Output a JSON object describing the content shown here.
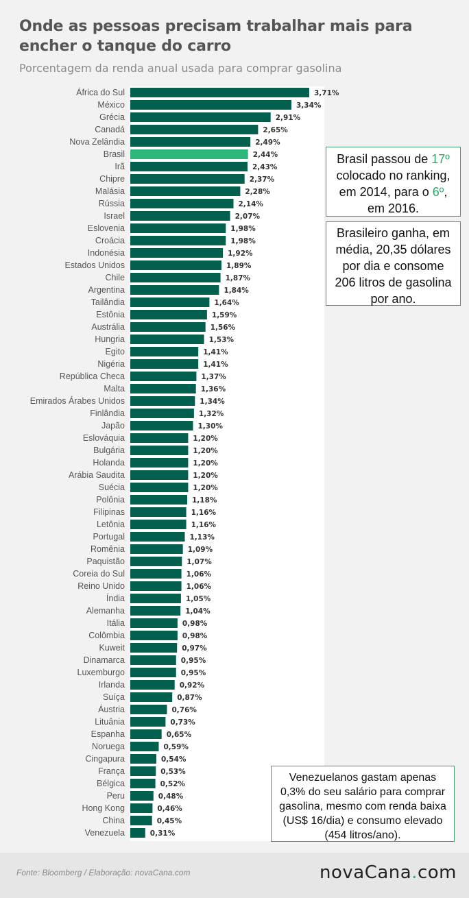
{
  "title": "Onde as pessoas precisam trabalhar mais para encher o tanque do carro",
  "subtitle": "Porcentagem da renda anual usada para comprar gasolina",
  "colors": {
    "bar": "#03604f",
    "highlight": "#2eb77a",
    "panel": "#ffffff",
    "accent": "#2fa866"
  },
  "chart_data": {
    "type": "bar",
    "orientation": "horizontal",
    "categories": [
      "África do Sul",
      "México",
      "Grécia",
      "Canadá",
      "Nova Zelândia",
      "Brasil",
      "Irã",
      "Chipre",
      "Malásia",
      "Rússia",
      "Israel",
      "Eslovenia",
      "Croácia",
      "Indonésia",
      "Estados Unidos",
      "Chile",
      "Argentina",
      "Tailândia",
      "Estônia",
      "Austrália",
      "Hungria",
      "Egito",
      "Nigéria",
      "República Checa",
      "Malta",
      "Emirados Árabes Unidos",
      "Finlândia",
      "Japão",
      "Eslováquia",
      "Bulgária",
      "Holanda",
      "Arábia Saudita",
      "Suécia",
      "Polônia",
      "Filipinas",
      "Letônia",
      "Portugal",
      "Romênia",
      "Paquistão",
      "Coreia do Sul",
      "Reino Unido",
      "Índia",
      "Alemanha",
      "Itália",
      "Colômbia",
      "Kuweit",
      "Dinamarca",
      "Luxemburgo",
      "Irlanda",
      "Suíça",
      "Áustria",
      "Lituânia",
      "Espanha",
      "Noruega",
      "Cingapura",
      "França",
      "Bélgica",
      "Peru",
      "Hong Kong",
      "China",
      "Venezuela"
    ],
    "values": [
      3.71,
      3.34,
      2.91,
      2.65,
      2.49,
      2.44,
      2.43,
      2.37,
      2.28,
      2.14,
      2.07,
      1.98,
      1.98,
      1.92,
      1.89,
      1.87,
      1.84,
      1.64,
      1.59,
      1.56,
      1.53,
      1.41,
      1.41,
      1.37,
      1.36,
      1.34,
      1.32,
      1.3,
      1.2,
      1.2,
      1.2,
      1.2,
      1.2,
      1.18,
      1.16,
      1.16,
      1.13,
      1.09,
      1.07,
      1.06,
      1.06,
      1.05,
      1.04,
      0.98,
      0.98,
      0.97,
      0.95,
      0.95,
      0.92,
      0.87,
      0.76,
      0.73,
      0.65,
      0.59,
      0.54,
      0.53,
      0.52,
      0.48,
      0.46,
      0.45,
      0.31
    ],
    "value_labels": [
      "3,71%",
      "3,34%",
      "2,91%",
      "2,65%",
      "2,49%",
      "2,44%",
      "2,43%",
      "2,37%",
      "2,28%",
      "2,14%",
      "2,07%",
      "1,98%",
      "1,98%",
      "1,92%",
      "1,89%",
      "1,87%",
      "1,84%",
      "1,64%",
      "1,59%",
      "1,56%",
      "1,53%",
      "1,41%",
      "1,41%",
      "1,37%",
      "1,36%",
      "1,34%",
      "1,32%",
      "1,30%",
      "1,20%",
      "1,20%",
      "1,20%",
      "1,20%",
      "1,20%",
      "1,18%",
      "1,16%",
      "1,16%",
      "1,13%",
      "1,09%",
      "1,07%",
      "1,06%",
      "1,06%",
      "1,05%",
      "1,04%",
      "0,98%",
      "0,98%",
      "0,97%",
      "0,95%",
      "0,95%",
      "0,92%",
      "0,87%",
      "0,76%",
      "0,73%",
      "0,65%",
      "0,59%",
      "0,54%",
      "0,53%",
      "0,52%",
      "0,48%",
      "0,46%",
      "0,45%",
      "0,31%"
    ],
    "highlight_category": "Brasil",
    "xlim": [
      0,
      3.71
    ],
    "grid": false,
    "legend": "none"
  },
  "annotations": {
    "brasil_rank": {
      "before": "Brasil passou de ",
      "rank_2014": "17º",
      "middle": " colocado no ranking, em 2014, para o ",
      "rank_2016": "6º",
      "after": ", em 2016."
    },
    "brasil_income": "Brasileiro ganha, em média, 20,35 dólares por dia e consome 206 litros de gasolina por ano.",
    "venezuela": "Venezuelanos gastam apenas 0,3% do seu salário para comprar gasolina, mesmo com renda baixa (US$ 16/dia) e consumo elevado (454 litros/ano)."
  },
  "footer": {
    "source": "Fonte: Bloomberg / Elaboração: novaCana.com",
    "logo_main": "novaCana",
    "logo_dot": ".",
    "logo_tld": "com"
  }
}
